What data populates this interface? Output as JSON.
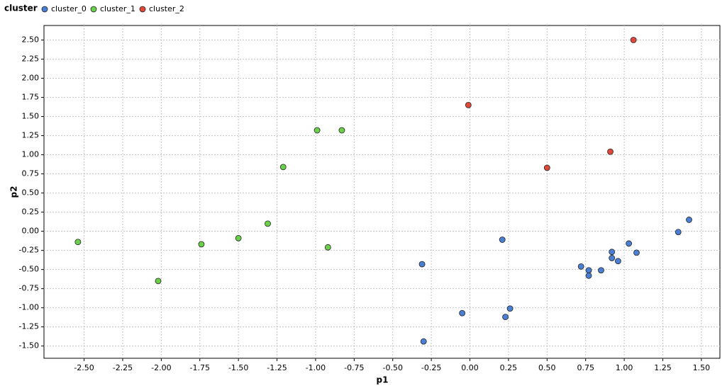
{
  "chart_data": {
    "type": "scatter",
    "legend_title": "cluster",
    "xlabel": "p1",
    "ylabel": "p2",
    "xlim": [
      -2.76,
      1.62
    ],
    "ylim": [
      -1.66,
      2.69
    ],
    "grid": true,
    "legend_position": "top-left",
    "xticks": [
      {
        "value": -2.5,
        "label": "-2.50"
      },
      {
        "value": -2.25,
        "label": "-2.25"
      },
      {
        "value": -2.0,
        "label": "-2.00"
      },
      {
        "value": -1.75,
        "label": "-1.75"
      },
      {
        "value": -1.5,
        "label": "-1.50"
      },
      {
        "value": -1.25,
        "label": "-1.25"
      },
      {
        "value": -1.0,
        "label": "-1.00"
      },
      {
        "value": -0.75,
        "label": "-0.75"
      },
      {
        "value": -0.5,
        "label": "-0.50"
      },
      {
        "value": -0.25,
        "label": "-0.25"
      },
      {
        "value": 0,
        "label": "0.00"
      },
      {
        "value": 0.25,
        "label": "0.25"
      },
      {
        "value": 0.5,
        "label": "0.50"
      },
      {
        "value": 0.75,
        "label": "0.75"
      },
      {
        "value": 1.0,
        "label": "1.00"
      },
      {
        "value": 1.25,
        "label": "1.25"
      },
      {
        "value": 1.5,
        "label": "1.50"
      }
    ],
    "yticks": [
      {
        "value": 2.5,
        "label": "2.50"
      },
      {
        "value": 2.25,
        "label": "2.25"
      },
      {
        "value": 2.0,
        "label": "2.00"
      },
      {
        "value": 1.75,
        "label": "1.75"
      },
      {
        "value": 1.5,
        "label": "1.50"
      },
      {
        "value": 1.25,
        "label": "1.25"
      },
      {
        "value": 1.0,
        "label": "1.00"
      },
      {
        "value": 0.75,
        "label": "0.75"
      },
      {
        "value": 0.5,
        "label": "0.50"
      },
      {
        "value": 0.25,
        "label": "0.25"
      },
      {
        "value": 0,
        "label": "0.00"
      },
      {
        "value": -0.25,
        "label": "-0.25"
      },
      {
        "value": -0.5,
        "label": "-0.50"
      },
      {
        "value": -0.75,
        "label": "-0.75"
      },
      {
        "value": -1.0,
        "label": "-1.00"
      },
      {
        "value": -1.25,
        "label": "-1.25"
      },
      {
        "value": -1.5,
        "label": "-1.50"
      }
    ],
    "series": [
      {
        "name": "cluster_0",
        "color": "#4a7fd4",
        "x": [
          1.42,
          1.35,
          1.03,
          1.08,
          0.92,
          0.92,
          0.96,
          0.72,
          0.77,
          0.85,
          0.77,
          0.21,
          -0.31,
          0.26,
          0.23,
          -0.05,
          -0.3
        ],
        "y": [
          0.15,
          -0.01,
          -0.16,
          -0.28,
          -0.27,
          -0.35,
          -0.39,
          -0.46,
          -0.51,
          -0.51,
          -0.58,
          -0.11,
          -0.43,
          -1.01,
          -1.12,
          -1.07,
          -1.44
        ]
      },
      {
        "name": "cluster_1",
        "color": "#6ad04a",
        "x": [
          -2.54,
          -2.02,
          -1.74,
          -1.5,
          -1.31,
          -1.21,
          -0.99,
          -0.83,
          -0.92
        ],
        "y": [
          -0.14,
          -0.65,
          -0.17,
          -0.09,
          0.1,
          0.84,
          1.32,
          1.32,
          -0.21
        ]
      },
      {
        "name": "cluster_2",
        "color": "#e0483a",
        "x": [
          1.06,
          -0.01,
          0.91,
          0.5
        ],
        "y": [
          2.5,
          1.65,
          1.04,
          0.83
        ]
      }
    ]
  }
}
